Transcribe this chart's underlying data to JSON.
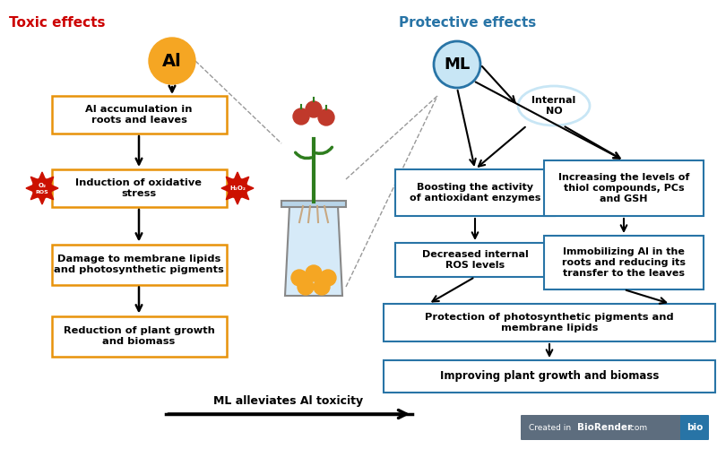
{
  "toxic_label": "Toxic effects",
  "protective_label": "Protective effects",
  "al_label": "Al",
  "ml_label": "ML",
  "internal_no_label": "Internal\nNO",
  "left_boxes": [
    "Al accumulation in\nroots and leaves",
    "Induction of oxidative\nstress",
    "Damage to membrane lipids\nand photosynthetic pigments",
    "Reduction of plant growth\nand biomass"
  ],
  "right_top_left": "Boosting the activity\nof antioxidant enzymes",
  "right_top_right": "Increasing the levels of\nthiol compounds, PCs\nand GSH",
  "right_mid_left": "Decreased internal\nROS levels",
  "right_mid_right": "Immobilizing Al in the\nroots and reducing its\ntransfer to the leaves",
  "right_bot1": "Protection of photosynthetic pigments and\nmembrane lipids",
  "right_bot2": "Improving plant growth and biomass",
  "bottom_arrow_label": "ML alleviates Al toxicity",
  "orange_color": "#F5A623",
  "light_blue_fill": "#C8E6F5",
  "blue_border": "#2874A6",
  "orange_border": "#E8930A",
  "toxic_color": "#CC0000",
  "protective_color": "#2874A6",
  "bg_color": "#FFFFFF",
  "wm_bg": "#5D6D7E",
  "wm_bio_bg": "#2874A6"
}
